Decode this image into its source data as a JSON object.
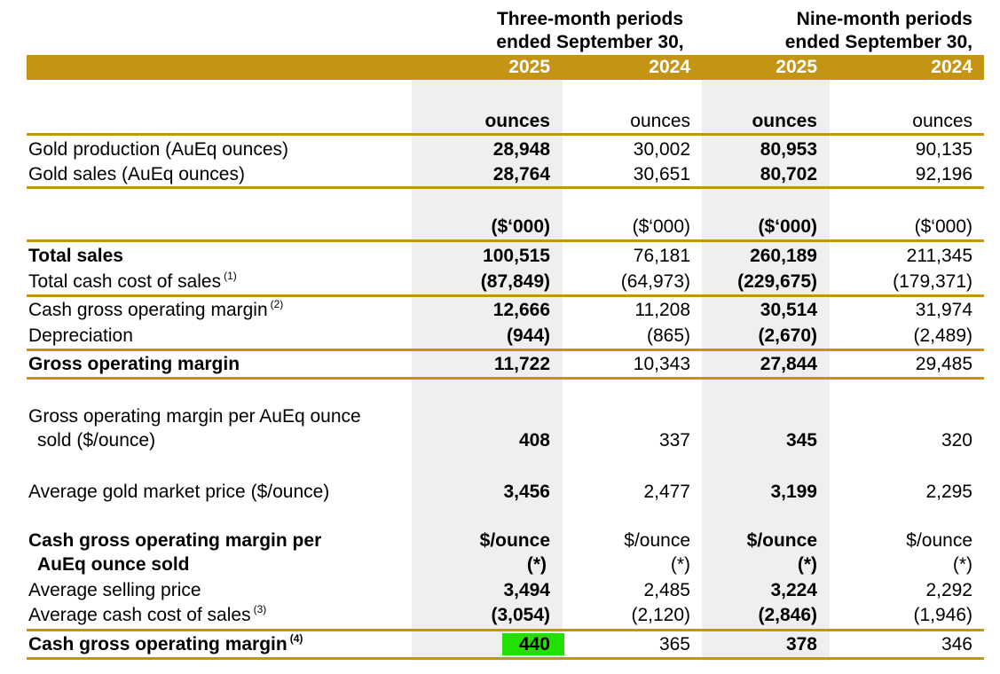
{
  "header": {
    "three_month": [
      "Three-month periods",
      "ended September 30,"
    ],
    "nine_month": [
      "Nine-month periods",
      "ended September 30,"
    ],
    "years": [
      "2025",
      "2024",
      "2025",
      "2024"
    ]
  },
  "colors": {
    "accent": "#c49415",
    "shade": "#efefef",
    "highlight": "#22e000"
  },
  "production": {
    "unit": [
      "ounces",
      "ounces",
      "ounces",
      "ounces"
    ],
    "rows": [
      {
        "label": "Gold production (AuEq ounces)",
        "values": [
          "28,948",
          "30,002",
          "80,953",
          "90,135"
        ]
      },
      {
        "label": "Gold sales (AuEq ounces)",
        "values": [
          "28,764",
          "30,651",
          "80,702",
          "92,196"
        ]
      }
    ]
  },
  "financial": {
    "unit": [
      "($‘000)",
      "($‘000)",
      "($‘000)",
      "($‘000)"
    ],
    "total_sales": {
      "label": "Total sales",
      "values": [
        "100,515",
        "76,181",
        "260,189",
        "211,345"
      ]
    },
    "total_cash_cost": {
      "label": "Total cash cost of sales",
      "note": "(1)",
      "values": [
        "(87,849)",
        "(64,973)",
        "(229,675)",
        "(179,371)"
      ]
    },
    "cash_gross": {
      "label": "Cash gross operating margin",
      "note": "(2)",
      "values": [
        "12,666",
        "11,208",
        "30,514",
        "31,974"
      ]
    },
    "depreciation": {
      "label": "Depreciation",
      "values": [
        "(944)",
        "(865)",
        "(2,670)",
        "(2,489)"
      ]
    },
    "gross_margin": {
      "label": "Gross operating margin",
      "values": [
        "11,722",
        "10,343",
        "27,844",
        "29,485"
      ]
    }
  },
  "per_ounce": {
    "label_line1": "Gross operating margin per AuEq ounce",
    "label_line2": "sold ($/ounce)",
    "values": [
      "408",
      "337",
      "345",
      "320"
    ]
  },
  "gold_price": {
    "label": "Average gold market price ($/ounce)",
    "values": [
      "3,456",
      "2,477",
      "3,199",
      "2,295"
    ]
  },
  "cash_margin_section": {
    "label_line1": "Cash gross operating margin per",
    "label_line2": "AuEq ounce sold",
    "unit_line1": [
      "$/ounce",
      "$/ounce",
      "$/ounce",
      "$/ounce"
    ],
    "unit_line2": [
      "(*)",
      "(*)",
      "(*)",
      "(*)"
    ],
    "avg_selling": {
      "label": "Average selling price",
      "values": [
        "3,494",
        "2,485",
        "3,224",
        "2,292"
      ]
    },
    "avg_cash_cost": {
      "label": "Average cash cost of sales",
      "note": "(3)",
      "values": [
        "(3,054)",
        "(2,120)",
        "(2,846)",
        "(1,946)"
      ]
    },
    "cash_margin": {
      "label": "Cash gross operating margin",
      "note": "(4)",
      "values": [
        "440",
        "365",
        "378",
        "346"
      ]
    }
  }
}
